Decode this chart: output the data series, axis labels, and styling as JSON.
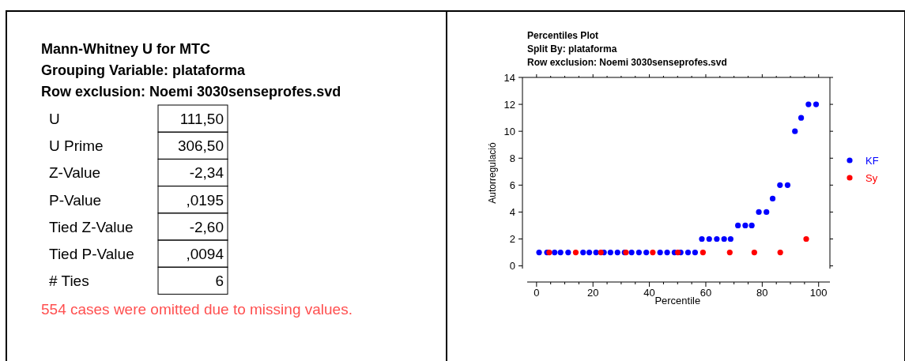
{
  "chart_data": [
    {
      "type": "other",
      "title": "Mann-Whitney U for MTC",
      "subtitle": "Grouping Variable: plataforma\nRow exclusion: Noemi 3030senseprofes.svd",
      "categories": [
        "U",
        "U Prime",
        "Z-Value",
        "P-Value",
        "Tied Z-Value",
        "Tied P-Value",
        "# Ties"
      ],
      "value_labels": [
        "111,50",
        "306,50",
        "-2,34",
        ",0195",
        "-2,60",
        ",0094",
        "6"
      ],
      "annotations": [
        "554 cases were omitted due to missing values."
      ]
    },
    {
      "type": "scatter",
      "title": "Percentiles Plot",
      "subtitle": "Split By: plataforma\nRow exclusion: Noemi 3030senseprofes.svd",
      "xlabel": "Percentile",
      "ylabel": "Autorregulació",
      "xlim": [
        -5,
        104
      ],
      "ylim": [
        -0.2,
        14
      ],
      "xticks": [
        0,
        20,
        40,
        60,
        80,
        100
      ],
      "yticks": [
        0,
        2,
        4,
        6,
        8,
        10,
        12,
        14
      ],
      "legend": "right",
      "marker": "circle",
      "series": [
        {
          "name": "KF",
          "color": "#0000ff",
          "x": [
            0.9,
            3.7,
            6.4,
            8.5,
            11.2,
            16.5,
            18.7,
            21.1,
            23.9,
            26.2,
            28.7,
            31.2,
            33.7,
            36.3,
            38.9,
            43.8,
            46.3,
            48.9,
            51.1,
            53.7,
            56.2,
            58.6,
            61.2,
            63.9,
            66.5,
            68.8,
            71.4,
            74,
            76.3,
            78.8,
            81.5,
            83.7,
            86.3,
            89,
            91.6,
            93.8,
            96.4,
            99.1
          ],
          "values": [
            1,
            1,
            1,
            1,
            1,
            1,
            1,
            1,
            1,
            1,
            1,
            1,
            1,
            1,
            1,
            1,
            1,
            1,
            1,
            1,
            1,
            2,
            2,
            2,
            2,
            2,
            3,
            3,
            3,
            4,
            4,
            5,
            6,
            6,
            10,
            11,
            12,
            12
          ]
        },
        {
          "name": "Sy",
          "color": "#ff0000",
          "x": [
            4.5,
            13.9,
            22.8,
            31.7,
            41.2,
            50.1,
            59,
            68.5,
            77.2,
            86.4,
            95.6
          ],
          "values": [
            1,
            1,
            1,
            1,
            1,
            1,
            1,
            1,
            1,
            1,
            2
          ]
        }
      ]
    }
  ]
}
